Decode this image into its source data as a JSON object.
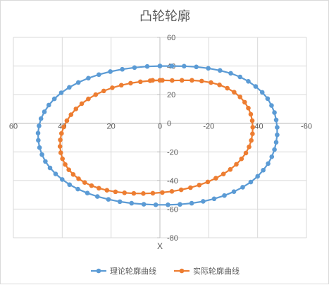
{
  "chart_data": {
    "type": "scatter",
    "title": "凸轮轮廓",
    "xlabel": "X",
    "ylabel": "",
    "xlim": [
      60,
      -60
    ],
    "ylim": [
      -80,
      60
    ],
    "x_ticks": [
      "60",
      "40",
      "20",
      "0",
      "-20",
      "-40",
      "-60"
    ],
    "y_ticks": [
      "60",
      "40",
      "20",
      "0",
      "-20",
      "-40",
      "-60",
      "-80"
    ],
    "grid": true,
    "legend_position": "bottom",
    "series": [
      {
        "name": "理论轮廓曲线",
        "color": "#5B9BD5",
        "x": [
          0.0,
          5.2,
          10.4,
          15.4,
          20.3,
          25.0,
          29.3,
          33.4,
          37.1,
          40.4,
          43.2,
          45.5,
          47.3,
          48.7,
          49.5,
          49.9,
          49.8,
          49.3,
          48.3,
          46.9,
          45.0,
          42.7,
          40.0,
          37.0,
          33.6,
          29.7,
          25.6,
          21.1,
          16.4,
          11.6,
          6.6,
          1.7,
          -3.3,
          -8.2,
          -13.0,
          -17.7,
          -22.2,
          -26.4,
          -30.3,
          -33.9,
          -37.2,
          -40.0,
          -42.3,
          -44.3,
          -45.8,
          -46.9,
          -47.6,
          -48.0,
          -48.0,
          -47.6,
          -46.9,
          -45.7,
          -44.1,
          -41.9,
          -39.2,
          -36.2,
          -32.8,
          -29.0,
          -24.6,
          -19.8,
          -14.9,
          -9.9,
          -4.9,
          0.0
        ],
        "y": [
          40.0,
          39.7,
          38.9,
          37.7,
          36.1,
          34.0,
          31.5,
          28.5,
          25.1,
          21.3,
          17.1,
          12.7,
          8.0,
          3.2,
          -1.8,
          -6.9,
          -11.9,
          -17.0,
          -21.9,
          -26.7,
          -31.2,
          -35.4,
          -39.3,
          -42.9,
          -46.0,
          -48.8,
          -51.2,
          -53.2,
          -54.8,
          -55.9,
          -56.6,
          -57.0,
          -57.0,
          -56.7,
          -55.9,
          -54.6,
          -52.8,
          -50.5,
          -47.8,
          -44.7,
          -41.1,
          -37.1,
          -32.8,
          -28.2,
          -23.4,
          -18.4,
          -13.3,
          -8.1,
          -2.9,
          2.3,
          7.5,
          12.4,
          17.2,
          21.6,
          25.7,
          29.3,
          32.4,
          34.9,
          36.9,
          38.4,
          39.4,
          39.9,
          40.0,
          40.0
        ]
      },
      {
        "name": "实际轮廓曲线",
        "color": "#ED7D31",
        "x": [
          0.0,
          4.0,
          8.0,
          12.0,
          15.8,
          19.5,
          23.0,
          26.3,
          29.3,
          32.0,
          34.4,
          36.4,
          38.1,
          39.4,
          40.3,
          40.8,
          40.9,
          40.6,
          39.9,
          38.8,
          37.3,
          35.5,
          33.3,
          30.8,
          28.0,
          25.0,
          21.7,
          18.2,
          14.5,
          10.7,
          6.8,
          2.9,
          -1.0,
          -4.9,
          -8.7,
          -12.5,
          -16.1,
          -19.6,
          -22.9,
          -26.0,
          -28.8,
          -31.3,
          -33.4,
          -35.2,
          -36.5,
          -37.4,
          -37.9,
          -38.0,
          -37.8,
          -37.2,
          -36.2,
          -34.7,
          -32.8,
          -30.4,
          -27.6,
          -24.4,
          -20.9,
          -17.1,
          -13.1,
          -9.0,
          -5.0,
          -1.0,
          3.0,
          0.0
        ],
        "y": [
          30.0,
          29.7,
          29.0,
          28.0,
          26.6,
          24.8,
          22.6,
          20.0,
          17.0,
          13.7,
          10.0,
          6.0,
          1.8,
          -2.6,
          -7.1,
          -11.6,
          -16.2,
          -20.6,
          -24.8,
          -28.8,
          -32.5,
          -35.8,
          -38.8,
          -41.4,
          -43.6,
          -45.4,
          -46.8,
          -47.9,
          -48.6,
          -49.0,
          -49.1,
          -48.9,
          -48.4,
          -47.6,
          -46.5,
          -45.0,
          -43.2,
          -41.0,
          -38.4,
          -35.5,
          -32.3,
          -28.7,
          -24.9,
          -20.8,
          -16.5,
          -12.0,
          -7.4,
          -2.8,
          1.8,
          6.3,
          10.6,
          14.7,
          18.4,
          21.7,
          24.5,
          26.8,
          28.4,
          29.5,
          30.0,
          30.0,
          29.9,
          30.0,
          30.0,
          30.0
        ]
      }
    ]
  }
}
